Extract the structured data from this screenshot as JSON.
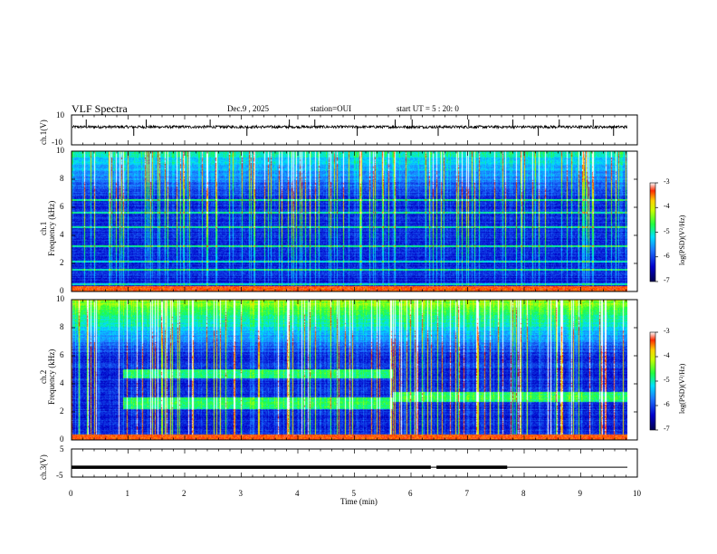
{
  "header": {
    "title": "VLF Spectra",
    "date": "Dec.9 , 2025",
    "station": "station=OUI",
    "start": "start UT = 5 : 20: 0"
  },
  "colors": {
    "scale_low": "#00007a",
    "scale_mid": "#1ea0ff",
    "scale_green": "#28ff30",
    "scale_yellow": "#ffff00",
    "scale_high": "#ff0000",
    "line": "#000000"
  },
  "chart_data": [
    {
      "type": "line",
      "name": "ch1-waveform",
      "title": "",
      "ylabel": "ch.1(V)",
      "ylim": [
        -10,
        10
      ],
      "yticks": [
        "10",
        "-10"
      ],
      "xlim": [
        0,
        10
      ],
      "baseline": 2,
      "noise_amplitude": 0.9,
      "spike_times_min": [
        0.26,
        1.1,
        1.32,
        2.45,
        3.1,
        3.85,
        4.3,
        5.05,
        5.72,
        6.02,
        6.48,
        7.02,
        7.8,
        8.25,
        8.62,
        9.22,
        9.58
      ]
    },
    {
      "type": "heatmap",
      "name": "ch1-spectrogram",
      "ylabel": "ch.1\nFrequency (kHz)",
      "ylim": [
        0,
        10
      ],
      "yticks": [
        "0",
        "2",
        "4",
        "6",
        "8",
        "10"
      ],
      "xlim": [
        0,
        9.85
      ],
      "colorbar": {
        "label": "log(PSD)(V²/Hz)",
        "range": [
          -7,
          -3
        ],
        "ticks": [
          "-3",
          "-4",
          "-5",
          "-6",
          "-7"
        ]
      },
      "bright_bands_khz": [
        0.2,
        0.5,
        1.5,
        2.1,
        3.2,
        4.6,
        5.6,
        6.5
      ],
      "sferic_upper_khz": 6
    },
    {
      "type": "heatmap",
      "name": "ch2-spectrogram",
      "ylabel": "ch.2\nFrequency (kHz)",
      "ylim": [
        0,
        10
      ],
      "yticks": [
        "0",
        "2",
        "4",
        "6",
        "8",
        "10"
      ],
      "xlim": [
        0,
        9.85
      ],
      "colorbar": {
        "label": "log(PSD)(V²/Hz)",
        "range": [
          -7,
          -3
        ],
        "ticks": [
          "-3",
          "-4",
          "-5",
          "-6",
          "-7"
        ]
      },
      "emission_bands": [
        {
          "t_start_min": 0.9,
          "t_end_min": 5.7,
          "f_low_khz": 2.2,
          "f_high_khz": 3.0
        },
        {
          "t_start_min": 0.9,
          "t_end_min": 5.7,
          "f_low_khz": 4.4,
          "f_high_khz": 5.0
        },
        {
          "t_start_min": 5.7,
          "t_end_min": 9.85,
          "f_low_khz": 2.7,
          "f_high_khz": 3.4
        }
      ],
      "sferic_upper_khz": 10
    },
    {
      "type": "line",
      "name": "ch3-waveform",
      "ylabel": "ch.3(V)",
      "ylim": [
        -5,
        5
      ],
      "yticks": [
        "5",
        "-5"
      ],
      "xlim": [
        0,
        10
      ],
      "level_v": -1.5,
      "thick_segments_min": [
        [
          0,
          6.35
        ],
        [
          6.45,
          7.7
        ]
      ]
    }
  ],
  "xaxis": {
    "label": "Time (min)",
    "ticks": [
      "0",
      "1",
      "2",
      "3",
      "4",
      "5",
      "6",
      "7",
      "8",
      "9",
      "10"
    ]
  }
}
